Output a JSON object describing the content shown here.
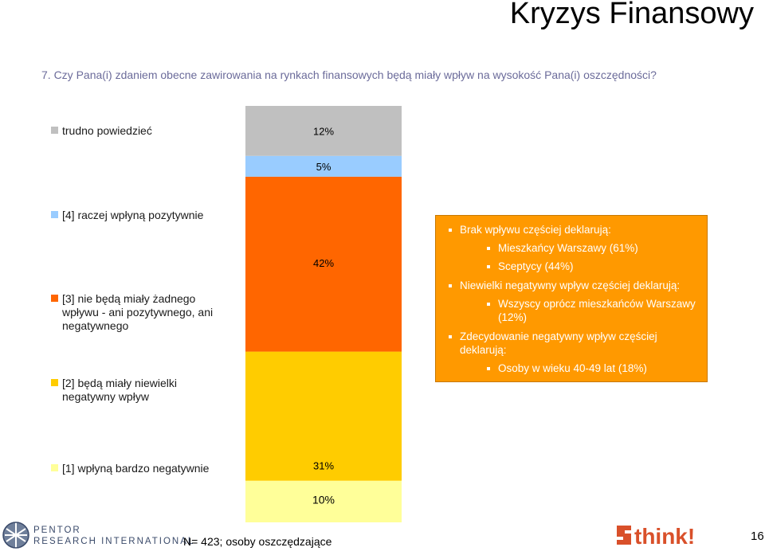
{
  "header": {
    "title": "Kryzys Finansowy",
    "question": "7. Czy Pana(i) zdaniem obecne zawirowania na rynkach finansowych będą miały wpływ na wysokość Pana(i) oszczędności?"
  },
  "chart_data": {
    "type": "bar",
    "stacked": true,
    "orientation": "vertical",
    "value_unit": "%",
    "series": [
      {
        "name": "[1] wpłyną bardzo negatywnie",
        "value": 10,
        "label": "10%",
        "color": "#ffff99"
      },
      {
        "name": "[2] będą miały niewielki negatywny wpływ",
        "value": 31,
        "label": "31%",
        "color": "#ffcc00"
      },
      {
        "name": "[3] nie będą miały żadnego wpływu - ani pozytywnego, ani negatywnego",
        "value": 42,
        "label": "42%",
        "color": "#ff6600"
      },
      {
        "name": "[4] raczej wpłyną pozytywnie",
        "value": 5,
        "label": "5%",
        "color": "#99ccff"
      },
      {
        "name": "trudno powiedzieć",
        "value": 12,
        "label": "12%",
        "color": "#c0c0c0"
      }
    ],
    "legend_order_top_to_bottom": [
      "trudno powiedzieć",
      "[4] raczej wpłyną pozytywnie",
      "[3] nie będą miały żadnego wpływu - ani pozytywnego, ani negatywnego",
      "[2] będą miały niewielki negatywny wpływ",
      "[1] wpłyną bardzo negatywnie"
    ],
    "legend": [
      {
        "text": "trudno powiedzieć",
        "color": "#c0c0c0"
      },
      {
        "text": "[4] raczej wpłyną pozytywnie",
        "color": "#99ccff"
      },
      {
        "text": "[3] nie będą miały żadnego wpływu - ani pozytywnego, ani negatywnego",
        "color": "#ff6600"
      },
      {
        "text": "[2] będą miały niewielki negatywny wpływ",
        "color": "#ffcc00"
      },
      {
        "text": "[1] wpłyną bardzo negatywnie",
        "color": "#ffff99"
      }
    ]
  },
  "infobox": {
    "line1": "Brak wpływu częściej deklarują:",
    "line1_sub1": "Mieszkańcy Warszawy (61%)",
    "line1_sub2": "Sceptycy (44%)",
    "line2": "Niewielki negatywny wpływ częściej deklarują:",
    "line2_sub1": "Wszyscy oprócz mieszkańców Warszawy (12%)",
    "line3": "Zdecydowanie negatywny wpływ częściej deklarują:",
    "line3_sub1": "Osoby w wieku 40-49 lat (18%)",
    "color": "#ff9900"
  },
  "footer": {
    "sample": "N= 423; osoby oszczędzające",
    "page_number": "16",
    "logo_pentor_line1": "PENTOR",
    "logo_pentor_line2": "RESEARCH INTERNATIONAL",
    "logo_think": "think!"
  }
}
